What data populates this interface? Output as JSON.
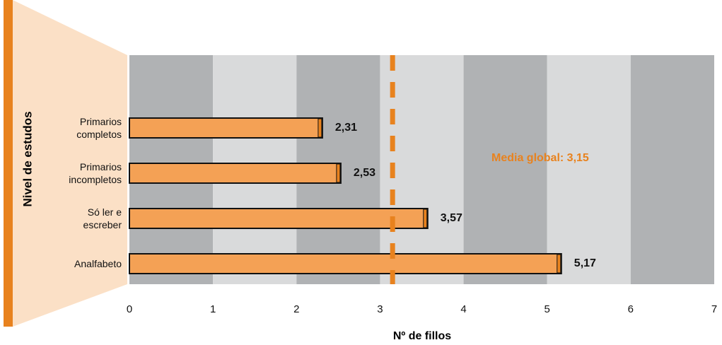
{
  "chart_data": {
    "type": "hbar",
    "y_label": "Nivel de estudos",
    "x_label": "Nº de fillos",
    "categories": [
      "Primarios completos",
      "Primarios incompletos",
      "Só ler e escreber",
      "Analfabeto"
    ],
    "values": [
      2.31,
      2.53,
      3.57,
      5.17
    ],
    "value_labels": [
      "2,31",
      "2,53",
      "3,57",
      "5,17"
    ],
    "color": "#f4a155",
    "xlim": [
      0,
      7
    ],
    "xticks": [
      0,
      1,
      2,
      3,
      4,
      5,
      6,
      7
    ],
    "grid": true,
    "mean": 3.15,
    "mean_label": "Media global: 3,15",
    "mean_color": "#e8821e"
  }
}
